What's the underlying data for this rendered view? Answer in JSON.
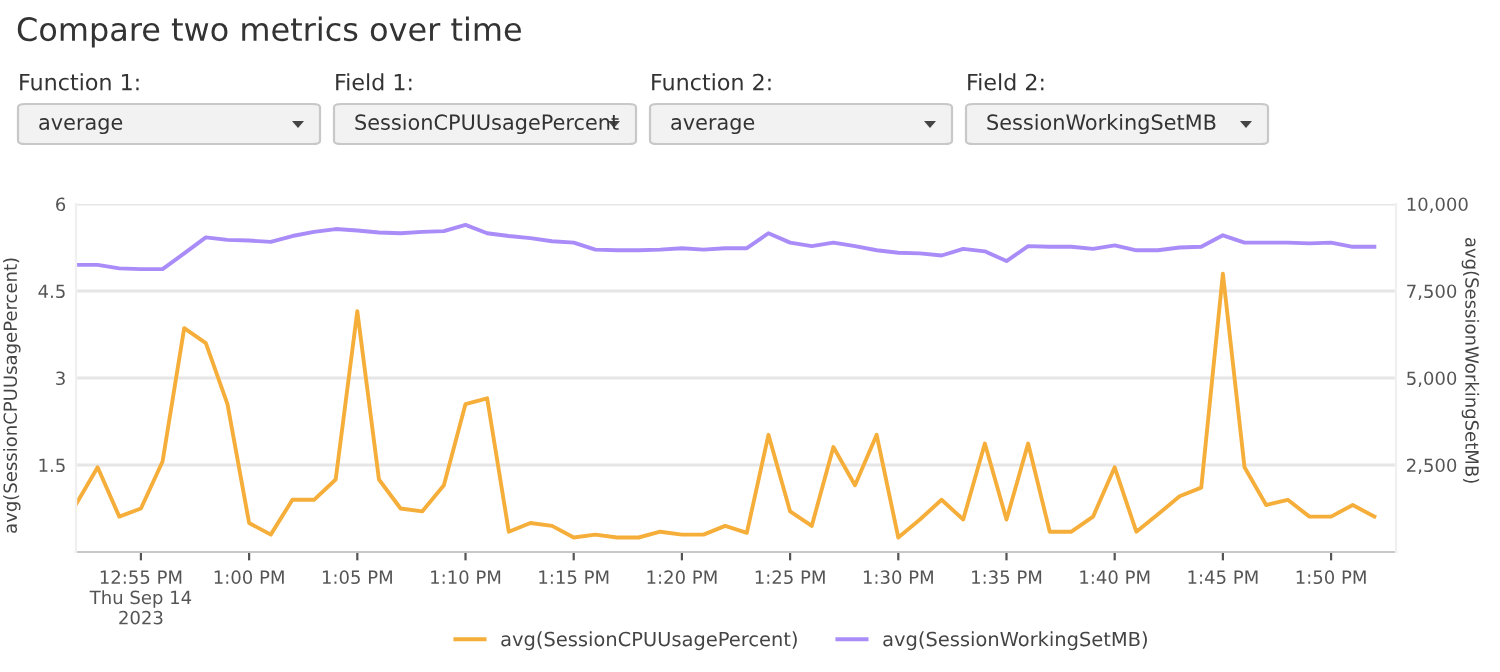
{
  "chart_data": {
    "type": "line",
    "title": "Compare two metrics over time",
    "annotations": [
      "Function 1:",
      "average",
      "Field 1:",
      "SessionCPUUsagePercent",
      "Function 2:",
      "average",
      "Field 2:",
      "SessionWorkingSetMB"
    ],
    "ylabel": "avg(SessionCPUUsagePercent)",
    "y2label": "avg(SessionWorkingSetMB)",
    "x": [
      "2023-09-14T12:52",
      "2023-09-14T12:53",
      "2023-09-14T12:54",
      "2023-09-14T12:55",
      "2023-09-14T12:56",
      "2023-09-14T12:57",
      "2023-09-14T12:58",
      "2023-09-14T12:59",
      "2023-09-14T13:00",
      "2023-09-14T13:01",
      "2023-09-14T13:02",
      "2023-09-14T13:03",
      "2023-09-14T13:04",
      "2023-09-14T13:05",
      "2023-09-14T13:06",
      "2023-09-14T13:07",
      "2023-09-14T13:08",
      "2023-09-14T13:09",
      "2023-09-14T13:10",
      "2023-09-14T13:11",
      "2023-09-14T13:12",
      "2023-09-14T13:13",
      "2023-09-14T13:14",
      "2023-09-14T13:15",
      "2023-09-14T13:16",
      "2023-09-14T13:17",
      "2023-09-14T13:18",
      "2023-09-14T13:19",
      "2023-09-14T13:20",
      "2023-09-14T13:21",
      "2023-09-14T13:22",
      "2023-09-14T13:23",
      "2023-09-14T13:24",
      "2023-09-14T13:25",
      "2023-09-14T13:26",
      "2023-09-14T13:27",
      "2023-09-14T13:28",
      "2023-09-14T13:29",
      "2023-09-14T13:30",
      "2023-09-14T13:31",
      "2023-09-14T13:32",
      "2023-09-14T13:33",
      "2023-09-14T13:34",
      "2023-09-14T13:35",
      "2023-09-14T13:36",
      "2023-09-14T13:37",
      "2023-09-14T13:38",
      "2023-09-14T13:39",
      "2023-09-14T13:40",
      "2023-09-14T13:41",
      "2023-09-14T13:42",
      "2023-09-14T13:43",
      "2023-09-14T13:44",
      "2023-09-14T13:45",
      "2023-09-14T13:46",
      "2023-09-14T13:47",
      "2023-09-14T13:48",
      "2023-09-14T13:49",
      "2023-09-14T13:50",
      "2023-09-14T13:51",
      "2023-09-14T13:52"
    ],
    "series": [
      {
        "name": "avg(SessionCPUUsagePercent)",
        "color": "#f6ae3a",
        "values": [
          0.82,
          1.46,
          0.61,
          0.75,
          1.56,
          3.86,
          3.6,
          2.55,
          0.5,
          0.3,
          0.9,
          0.9,
          1.25,
          4.15,
          1.25,
          0.75,
          0.7,
          1.15,
          2.55,
          2.65,
          0.35,
          0.5,
          0.45,
          0.25,
          0.3,
          0.25,
          0.25,
          0.35,
          0.3,
          0.3,
          0.45,
          0.33,
          2.02,
          0.7,
          0.45,
          1.81,
          1.15,
          2.02,
          0.25,
          0.56,
          0.9,
          0.56,
          1.87,
          0.56,
          1.87,
          0.35,
          0.35,
          0.61,
          1.46,
          0.35,
          0.65,
          0.96,
          1.11,
          4.8,
          1.46,
          0.81,
          0.9,
          0.61,
          0.61,
          0.81,
          0.61
        ]
      },
      {
        "name": "avg(SessionWorkingSetMB)",
        "color": "#a98cf8",
        "axis": "y2",
        "values": [
          8250,
          8250,
          8150,
          8130,
          8130,
          8580,
          9040,
          8970,
          8950,
          8910,
          9080,
          9200,
          9280,
          9240,
          9180,
          9160,
          9200,
          9220,
          9400,
          9160,
          9080,
          9020,
          8930,
          8890,
          8690,
          8670,
          8670,
          8690,
          8730,
          8690,
          8730,
          8730,
          9160,
          8890,
          8790,
          8890,
          8790,
          8670,
          8600,
          8580,
          8520,
          8710,
          8640,
          8360,
          8790,
          8770,
          8770,
          8710,
          8810,
          8670,
          8670,
          8750,
          8770,
          9100,
          8890,
          8890,
          8890,
          8870,
          8890,
          8770,
          8770
        ]
      }
    ],
    "xlim": [
      "2023-09-14T12:52",
      "2023-09-14T13:53"
    ],
    "xticks": [
      {
        "value": "2023-09-14T12:55",
        "label": "12:55 PM\nThu Sep 14\n2023"
      },
      {
        "value": "2023-09-14T13:00",
        "label": "1:00 PM"
      },
      {
        "value": "2023-09-14T13:05",
        "label": "1:05 PM"
      },
      {
        "value": "2023-09-14T13:10",
        "label": "1:10 PM"
      },
      {
        "value": "2023-09-14T13:15",
        "label": "1:15 PM"
      },
      {
        "value": "2023-09-14T13:20",
        "label": "1:20 PM"
      },
      {
        "value": "2023-09-14T13:25",
        "label": "1:25 PM"
      },
      {
        "value": "2023-09-14T13:30",
        "label": "1:30 PM"
      },
      {
        "value": "2023-09-14T13:35",
        "label": "1:35 PM"
      },
      {
        "value": "2023-09-14T13:40",
        "label": "1:40 PM"
      },
      {
        "value": "2023-09-14T13:45",
        "label": "1:45 PM"
      },
      {
        "value": "2023-09-14T13:50",
        "label": "1:50 PM"
      }
    ],
    "ylim": [
      0,
      6
    ],
    "yticks": [
      1.5,
      3,
      4.5,
      6
    ],
    "y2lim": [
      0,
      10000
    ],
    "y2ticks": [
      {
        "value": 2500,
        "label": "2,500"
      },
      {
        "value": 5000,
        "label": "5,000"
      },
      {
        "value": 7500,
        "label": "7,500"
      },
      {
        "value": 10000,
        "label": "10,000"
      }
    ],
    "grid": "y",
    "legend": "bottom",
    "marker": "none",
    "line_style": "solid"
  }
}
